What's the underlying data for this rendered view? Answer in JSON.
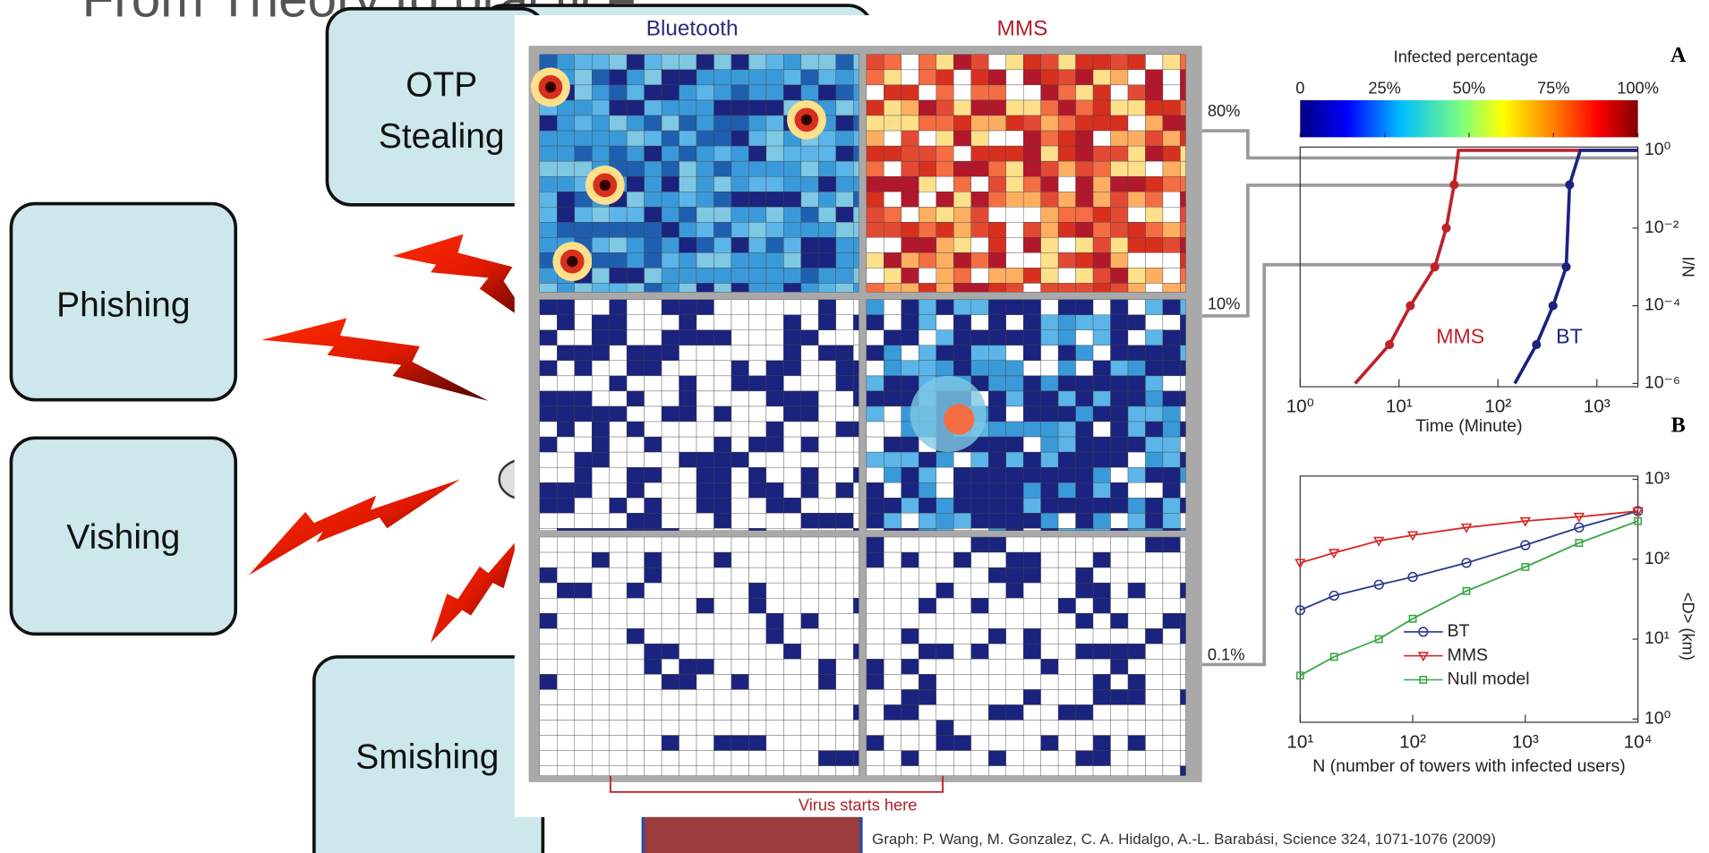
{
  "slide": {
    "title": "From Theory to practice",
    "boxes": [
      [
        "OTP",
        "Stealing"
      ],
      [
        "Phishing"
      ],
      [
        "Vishing"
      ],
      [
        "Smishing"
      ]
    ]
  },
  "figure": {
    "columns": [
      "Bluetooth",
      "MMS"
    ],
    "levels": [
      "80%",
      "10%",
      "0.1%"
    ],
    "annotation": "Virus starts here",
    "panel_labels": [
      "A",
      "B"
    ],
    "caption": "Graph: P. Wang, M. Gonzalez, C. A. Hidalgo, A.-L. Barabási, Science 324, 1071-1076 (2009)"
  },
  "colorbar": {
    "title": "Infected percentage",
    "range": [
      0,
      100
    ],
    "ticks": [
      0,
      {
        "value": 25,
        "label": "25%"
      },
      {
        "value": 50,
        "label": "50%"
      },
      {
        "value": 75,
        "label": "75%"
      },
      {
        "value": 100,
        "label": "100%"
      }
    ]
  },
  "chart_data": [
    {
      "type": "line",
      "xlabel": "Time (Minute)",
      "ylabel": "I/N",
      "log_x": true,
      "log_y": true,
      "xlim": [
        1,
        2600
      ],
      "ylim": [
        1e-06,
        1
      ],
      "xticks": [
        {
          "value": 1,
          "label": "10⁰"
        },
        {
          "value": 10,
          "label": "10¹"
        },
        {
          "value": 100,
          "label": "10²"
        },
        {
          "value": 1000,
          "label": "10³"
        }
      ],
      "yticks": [
        {
          "value": 1,
          "label": "10⁰"
        },
        {
          "value": 0.01,
          "label": "10⁻²"
        },
        {
          "value": 0.0001,
          "label": "10⁻⁴"
        },
        {
          "value": 1e-06,
          "label": "10⁻⁶"
        }
      ],
      "series": [
        {
          "name": "MMS",
          "color": "#c0202a",
          "x": [
            3.6,
            8,
            13,
            23,
            30,
            36,
            40,
            2600
          ],
          "values": [
            1e-06,
            1e-05,
            0.0001,
            0.001,
            0.01,
            0.13,
            1,
            1
          ]
        },
        {
          "name": "BT",
          "color": "#1a237e",
          "x": [
            148,
            245,
            360,
            490,
            530,
            680,
            2600
          ],
          "values": [
            1e-06,
            1e-05,
            0.0001,
            0.001,
            0.13,
            1,
            1
          ]
        }
      ]
    },
    {
      "type": "line",
      "xlabel": "N (number of towers with infected users)",
      "ylabel": "<D> (km)",
      "log_x": true,
      "log_y": true,
      "xlim": [
        10,
        10000
      ],
      "ylim": [
        1,
        1000
      ],
      "legend": "lower right",
      "xticks": [
        {
          "value": 10,
          "label": "10¹"
        },
        {
          "value": 100,
          "label": "10²"
        },
        {
          "value": 1000,
          "label": "10³"
        },
        {
          "value": 10000,
          "label": "10⁴"
        }
      ],
      "yticks": [
        {
          "value": 1,
          "label": "10⁰"
        },
        {
          "value": 10,
          "label": "10¹"
        },
        {
          "value": 100,
          "label": "10²"
        },
        {
          "value": 1000,
          "label": "10³"
        }
      ],
      "series": [
        {
          "name": "BT",
          "color": "#2c3a8c",
          "marker": "circle",
          "x": [
            10,
            20,
            50,
            100,
            300,
            1000,
            3000,
            10000
          ],
          "values": [
            23,
            35,
            48,
            60,
            90,
            150,
            250,
            400
          ]
        },
        {
          "name": "MMS",
          "color": "#d62828",
          "marker": "triangle",
          "x": [
            10,
            20,
            50,
            100,
            300,
            1000,
            3000,
            10000
          ],
          "values": [
            90,
            120,
            170,
            200,
            250,
            300,
            340,
            400
          ]
        },
        {
          "name": "Null model",
          "color": "#3aa845",
          "marker": "square",
          "x": [
            10,
            20,
            50,
            100,
            300,
            1000,
            3000,
            10000
          ],
          "values": [
            3.5,
            6,
            10,
            18,
            40,
            80,
            160,
            300
          ]
        }
      ]
    }
  ]
}
